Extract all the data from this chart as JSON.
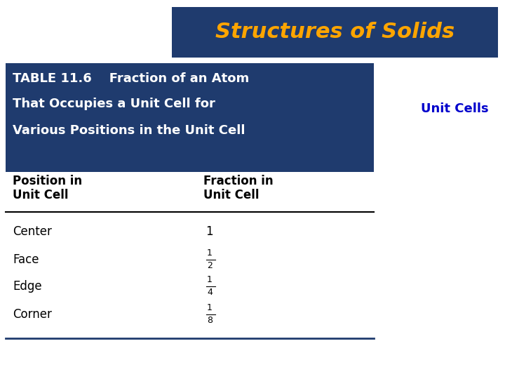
{
  "title": "Structures of Solids",
  "title_color": "#FFA500",
  "title_bg_color": "#1F3B6E",
  "subtitle_label": "Unit Cells",
  "subtitle_color": "#0000CC",
  "table_header_line1": "TABLE 11.6    Fraction of an Atom",
  "table_header_line2": "That Occupies a Unit Cell for",
  "table_header_line3": "Various Positions in the Unit Cell",
  "table_header_bg": "#1F3B6E",
  "table_header_text_color": "#FFFFFF",
  "col1_header_line1": "Position in",
  "col1_header_line2": "Unit Cell",
  "col2_header_line1": "Fraction in",
  "col2_header_line2": "Unit Cell",
  "col_header_color": "#000000",
  "bg_color": "#FFFFFF",
  "line_color": "#000000",
  "row_text_color": "#000000",
  "positions": [
    "Center",
    "Face",
    "Edge",
    "Corner"
  ],
  "bottom_line_color": "#1F3B6E"
}
